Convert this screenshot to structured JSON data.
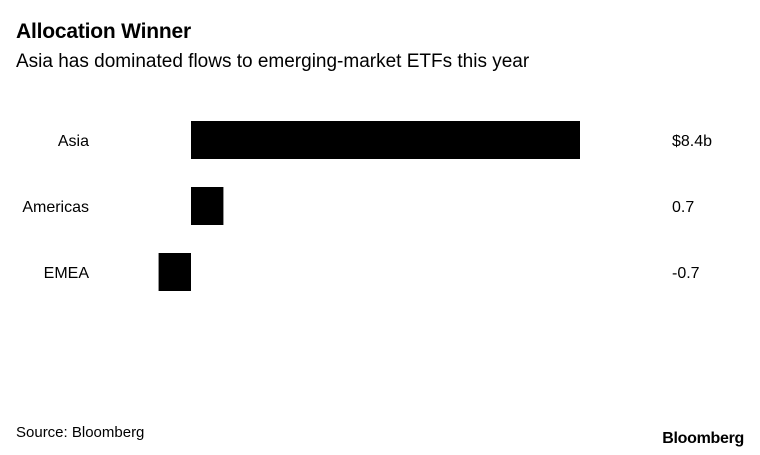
{
  "header": {
    "title": "Allocation Winner",
    "subtitle": "Asia has dominated flows to emerging-market ETFs this year"
  },
  "chart_data": {
    "type": "bar",
    "orientation": "horizontal",
    "categories": [
      "Asia",
      "Americas",
      "EMEA"
    ],
    "values": [
      8.4,
      0.7,
      -0.7
    ],
    "value_labels": [
      "$8.4b",
      "0.7",
      "-0.7"
    ],
    "unit": "$ billions",
    "bar_color": "#000000",
    "grid": false,
    "legend": "none"
  },
  "footer": {
    "source": "Source: Bloomberg",
    "brand": "Bloomberg"
  }
}
